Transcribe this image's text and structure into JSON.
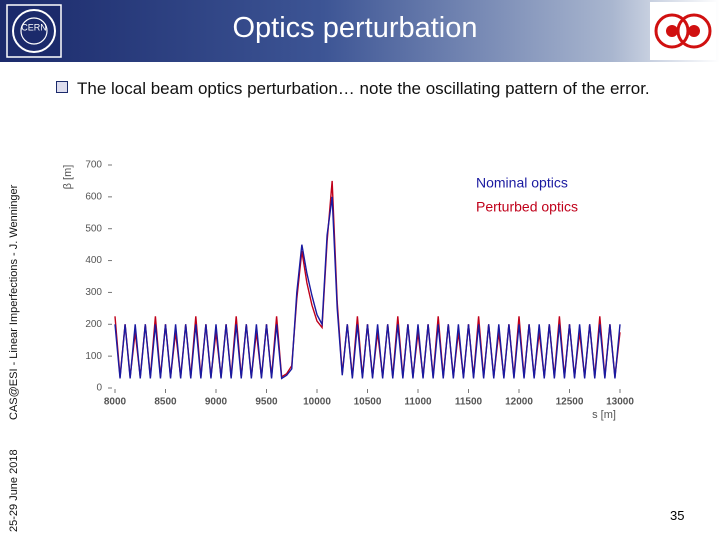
{
  "header": {
    "title": "Optics perturbation"
  },
  "bullet": "The local beam optics perturbation… note the oscillating pattern of the error.",
  "sidebar": {
    "date": "25-29 June 2018",
    "event": "CAS@ESI - Linear Imperfections - J. Wenninger"
  },
  "page_number": "35",
  "chart_data": {
    "type": "line",
    "xlabel": "s [m]",
    "ylabel": "β [m]",
    "x": [
      8000,
      8050,
      8100,
      8150,
      8200,
      8250,
      8300,
      8350,
      8400,
      8450,
      8500,
      8550,
      8600,
      8650,
      8700,
      8750,
      8800,
      8850,
      8900,
      8950,
      9000,
      9050,
      9100,
      9150,
      9200,
      9250,
      9300,
      9350,
      9400,
      9450,
      9500,
      9550,
      9600,
      9650,
      9700,
      9750,
      9800,
      9850,
      9900,
      9950,
      10000,
      10050,
      10100,
      10150,
      10200,
      10250,
      10300,
      10350,
      10400,
      10450,
      10500,
      10550,
      10600,
      10650,
      10700,
      10750,
      10800,
      10850,
      10900,
      10950,
      11000,
      11050,
      11100,
      11150,
      11200,
      11250,
      11300,
      11350,
      11400,
      11450,
      11500,
      11550,
      11600,
      11650,
      11700,
      11750,
      11800,
      11850,
      11900,
      11950,
      12000,
      12050,
      12100,
      12150,
      12200,
      12250,
      12300,
      12350,
      12400,
      12450,
      12500,
      12550,
      12600,
      12650,
      12700,
      12750,
      12800,
      12850,
      12900,
      12950,
      13000
    ],
    "series": [
      {
        "name": "Perturbed optics",
        "color": "#c0001a",
        "values": [
          225,
          35,
          200,
          35,
          175,
          35,
          200,
          35,
          225,
          35,
          200,
          35,
          175,
          35,
          200,
          35,
          225,
          35,
          200,
          35,
          175,
          35,
          200,
          35,
          225,
          35,
          200,
          35,
          175,
          35,
          200,
          35,
          225,
          35,
          45,
          70,
          280,
          430,
          330,
          260,
          210,
          190,
          460,
          650,
          270,
          45,
          200,
          35,
          225,
          35,
          200,
          35,
          175,
          35,
          200,
          35,
          225,
          35,
          200,
          35,
          175,
          35,
          200,
          35,
          225,
          35,
          200,
          35,
          175,
          35,
          200,
          35,
          225,
          35,
          200,
          35,
          175,
          35,
          200,
          35,
          225,
          35,
          200,
          35,
          175,
          35,
          200,
          35,
          225,
          35,
          200,
          35,
          175,
          35,
          200,
          35,
          225,
          35,
          200,
          35,
          175
        ]
      },
      {
        "name": "Nominal optics",
        "color": "#1a1aa0",
        "values": [
          200,
          30,
          200,
          30,
          200,
          30,
          200,
          30,
          200,
          30,
          200,
          30,
          200,
          30,
          200,
          30,
          200,
          30,
          200,
          30,
          200,
          30,
          200,
          30,
          200,
          30,
          200,
          30,
          200,
          30,
          200,
          30,
          200,
          30,
          40,
          60,
          300,
          450,
          360,
          290,
          230,
          200,
          480,
          600,
          250,
          40,
          200,
          30,
          200,
          30,
          200,
          30,
          200,
          30,
          200,
          30,
          200,
          30,
          200,
          30,
          200,
          30,
          200,
          30,
          200,
          30,
          200,
          30,
          200,
          30,
          200,
          30,
          200,
          30,
          200,
          30,
          200,
          30,
          200,
          30,
          200,
          30,
          200,
          30,
          200,
          30,
          200,
          30,
          200,
          30,
          200,
          30,
          200,
          30,
          200,
          30,
          200,
          30,
          200,
          30,
          200
        ]
      }
    ],
    "xlim": [
      8000,
      13000
    ],
    "xticks": [
      8000,
      8500,
      9000,
      9500,
      10000,
      10500,
      11000,
      11500,
      12000,
      12500,
      13000
    ],
    "ylim": [
      0,
      700
    ],
    "yticks": [
      0,
      100,
      200,
      300,
      400,
      500,
      600,
      700
    ]
  }
}
